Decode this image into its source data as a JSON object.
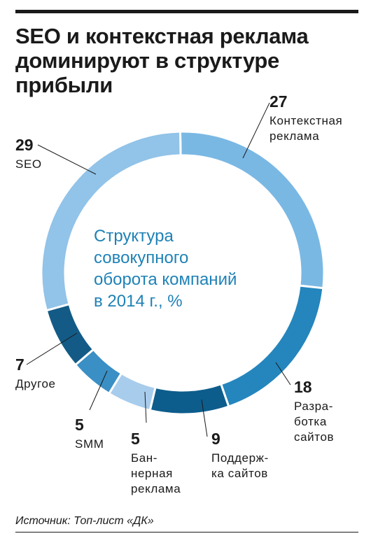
{
  "title_lines": [
    "SEO и контекстная реклама",
    "доминируют в структуре",
    "прибыли"
  ],
  "center_lines": [
    "Структура",
    "совокупного",
    "оборота компаний",
    "в 2014 г., %"
  ],
  "source": "Источник: Топ-лист «ДК»",
  "chart_data": {
    "type": "pie",
    "variant": "donut",
    "title": "SEO и контекстная реклама доминируют в структуре прибыли",
    "subtitle": "Структура совокупного оборота компаний в 2014 г., %",
    "slices": [
      {
        "label_lines": [
          "Контекстная",
          "реклама"
        ],
        "value": 27,
        "color": "#7ab8e4"
      },
      {
        "label_lines": [
          "Разра-",
          "ботка",
          "сайтов"
        ],
        "value": 18,
        "color": "#2486bd"
      },
      {
        "label_lines": [
          "Поддерж-",
          "ка сайтов"
        ],
        "value": 9,
        "color": "#0d5d8c"
      },
      {
        "label_lines": [
          "Бан-",
          "нерная",
          "реклама"
        ],
        "value": 5,
        "color": "#a8ccec"
      },
      {
        "label_lines": [
          "SMM"
        ],
        "value": 5,
        "color": "#3a8fc4"
      },
      {
        "label_lines": [
          "Другое"
        ],
        "value": 7,
        "color": "#135b86"
      },
      {
        "label_lines": [
          "SEO"
        ],
        "value": 29,
        "color": "#92c3e8"
      }
    ]
  }
}
